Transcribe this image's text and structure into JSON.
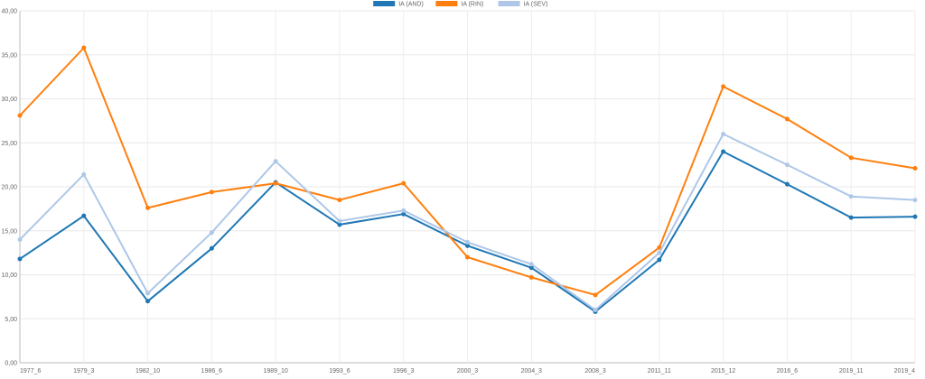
{
  "chart_data": {
    "type": "line",
    "categories": [
      "1977_6",
      "1979_3",
      "1982_10",
      "1986_6",
      "1989_10",
      "1993_6",
      "1996_3",
      "2000_3",
      "2004_3",
      "2008_3",
      "2011_11",
      "2015_12",
      "2016_6",
      "2019_11",
      "2019_4"
    ],
    "series": [
      {
        "name": "IA (AND)",
        "color": "#1f77b4",
        "values": [
          11.8,
          16.7,
          7.0,
          13.0,
          20.5,
          15.7,
          16.9,
          13.3,
          10.8,
          5.8,
          11.7,
          24.0,
          20.3,
          16.5,
          16.6
        ]
      },
      {
        "name": "IA (RIN)",
        "color": "#ff7f0e",
        "values": [
          28.1,
          35.8,
          17.6,
          19.4,
          20.4,
          18.5,
          20.4,
          12.0,
          9.7,
          7.7,
          13.1,
          31.4,
          27.7,
          23.3,
          22.1
        ]
      },
      {
        "name": "IA (SEV)",
        "color": "#aec7e8",
        "values": [
          14.0,
          21.4,
          7.9,
          14.8,
          22.9,
          16.1,
          17.3,
          13.7,
          11.2,
          6.0,
          12.5,
          26.0,
          22.5,
          18.9,
          18.5
        ]
      }
    ],
    "ylim": [
      0,
      40
    ],
    "yticks": [
      "0,00",
      "5,00",
      "10,00",
      "15,00",
      "20,00",
      "25,00",
      "30,00",
      "35,00",
      "40,00"
    ],
    "grid": true,
    "legend_position": "top"
  }
}
